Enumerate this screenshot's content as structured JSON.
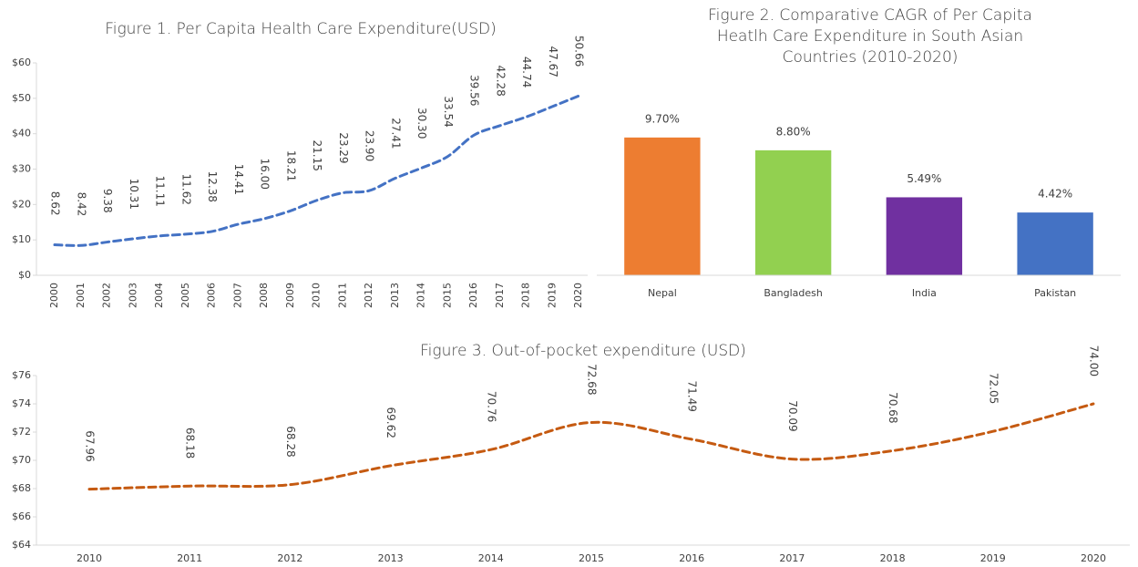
{
  "chart_data": [
    {
      "type": "line",
      "title": "Figure 1. Per Capita Health Care Expenditure(USD)",
      "categories": [
        "2000",
        "2001",
        "2002",
        "2003",
        "2004",
        "2005",
        "2006",
        "2007",
        "2008",
        "2009",
        "2010",
        "2011",
        "2012",
        "2013",
        "2014",
        "2015",
        "2016",
        "2017",
        "2018",
        "2019",
        "2020"
      ],
      "values": [
        8.62,
        8.42,
        9.38,
        10.31,
        11.11,
        11.62,
        12.38,
        14.41,
        16.0,
        18.21,
        21.15,
        23.29,
        23.9,
        27.41,
        30.3,
        33.54,
        39.56,
        42.28,
        44.74,
        47.67,
        50.66
      ],
      "value_labels": [
        "8.62",
        "8.42",
        "9.38",
        "10.31",
        "11.11",
        "11.62",
        "12.38",
        "14.41",
        "16.00",
        "18.21",
        "21.15",
        "23.29",
        "23.90",
        "27.41",
        "30.30",
        "33.54",
        "39.56",
        "42.28",
        "44.74",
        "47.67",
        "50.66"
      ],
      "color": "#4472c4",
      "dashed": true,
      "ylim": [
        0,
        60
      ],
      "yticks": [
        {
          "value": 0,
          "label": "$0"
        },
        {
          "value": 10,
          "label": "$10"
        },
        {
          "value": 20,
          "label": "$20"
        },
        {
          "value": 30,
          "label": "$30"
        },
        {
          "value": 40,
          "label": "$40"
        },
        {
          "value": 50,
          "label": "$50"
        },
        {
          "value": 60,
          "label": "$60"
        }
      ]
    },
    {
      "type": "bar",
      "title": "Figure 2. Comparative CAGR of Per Capita Heatlh Care Expenditure in South Asian Countries (2010-2020)",
      "categories": [
        "Nepal",
        "Bangladesh",
        "India",
        "Pakistan"
      ],
      "values": [
        9.7,
        8.8,
        5.49,
        4.42
      ],
      "value_labels": [
        "9.70%",
        "8.80%",
        "5.49%",
        "4.42%"
      ],
      "colors": [
        "#ed7d31",
        "#92d050",
        "#7030a0",
        "#4472c4"
      ],
      "ylim": [
        0,
        12
      ]
    },
    {
      "type": "line",
      "title": "Figure 3. Out-of-pocket expenditure (USD)",
      "categories": [
        "2010",
        "2011",
        "2012",
        "2013",
        "2014",
        "2015",
        "2016",
        "2017",
        "2018",
        "2019",
        "2020"
      ],
      "values": [
        67.96,
        68.18,
        68.28,
        69.62,
        70.76,
        72.68,
        71.49,
        70.09,
        70.68,
        72.05,
        74.0
      ],
      "value_labels": [
        "67.96",
        "68.18",
        "68.28",
        "69.62",
        "70.76",
        "72.68",
        "71.49",
        "70.09",
        "70.68",
        "72.05",
        "74.00"
      ],
      "color": "#c55a11",
      "dashed": true,
      "ylim": [
        64,
        76
      ],
      "yticks": [
        {
          "value": 64,
          "label": "$64"
        },
        {
          "value": 66,
          "label": "$66"
        },
        {
          "value": 68,
          "label": "$68"
        },
        {
          "value": 70,
          "label": "$70"
        },
        {
          "value": 72,
          "label": "$72"
        },
        {
          "value": 74,
          "label": "$74"
        },
        {
          "value": 76,
          "label": "$76"
        }
      ]
    }
  ]
}
